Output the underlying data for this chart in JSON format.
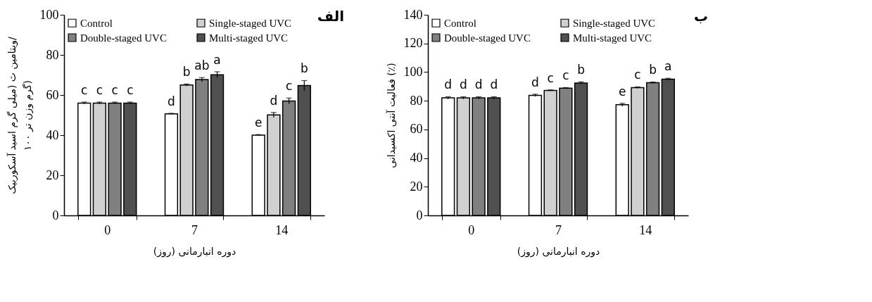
{
  "chart_data": [
    {
      "type": "bar",
      "title": "الف",
      "xlabel": "دوره انبارمانی (روز)",
      "ylabel": "ویتامین ث (میلی گرم اسید آسکوربیک/\n۱۰۰ گرم وزن تر)",
      "categories": [
        "0",
        "7",
        "14"
      ],
      "ylim": [
        0,
        100
      ],
      "yticks": [
        0,
        20,
        40,
        60,
        80,
        100
      ],
      "legend": "top",
      "series": [
        {
          "name": "Control",
          "color": "#ffffff",
          "values": [
            56,
            50.6,
            40
          ],
          "errors": [
            0.5,
            0.3,
            0.3
          ],
          "value_labels": [
            "c",
            "d",
            "e"
          ]
        },
        {
          "name": "Single-staged UVC",
          "color": "#d0d0d0",
          "values": [
            56,
            65,
            50.1
          ],
          "errors": [
            0.5,
            0.5,
            1.2
          ],
          "value_labels": [
            "c",
            "b",
            "d"
          ]
        },
        {
          "name": "Double-staged UVC",
          "color": "#808080",
          "values": [
            56,
            67.7,
            57
          ],
          "errors": [
            0.5,
            1,
            1.5
          ],
          "value_labels": [
            "c",
            "ab",
            "c"
          ]
        },
        {
          "name": "Multi-staged UVC",
          "color": "#505050",
          "values": [
            56,
            70.1,
            64.7
          ],
          "errors": [
            0.5,
            1.5,
            2.5
          ],
          "value_labels": [
            "c",
            "a",
            "b"
          ]
        }
      ]
    },
    {
      "type": "bar",
      "title": "ب",
      "xlabel": "دوره انبارمانی (روز)",
      "ylabel": "فعالیت آنتی اکسیدانی (٪)",
      "categories": [
        "0",
        "7",
        "14"
      ],
      "ylim": [
        0,
        140
      ],
      "yticks": [
        0,
        20,
        40,
        60,
        80,
        100,
        120,
        140
      ],
      "legend": "top",
      "series": [
        {
          "name": "Control",
          "color": "#ffffff",
          "values": [
            82,
            83.8,
            77.2
          ],
          "errors": [
            0.8,
            0.8,
            1
          ],
          "value_labels": [
            "d",
            "d",
            "e"
          ]
        },
        {
          "name": "Single-staged UVC",
          "color": "#d0d0d0",
          "values": [
            82,
            87.2,
            89.2
          ],
          "errors": [
            0.8,
            0.4,
            0.5
          ],
          "value_labels": [
            "d",
            "c",
            "c"
          ]
        },
        {
          "name": "Double-staged UVC",
          "color": "#808080",
          "values": [
            82,
            88.8,
            92.6
          ],
          "errors": [
            0.8,
            0.4,
            0.5
          ],
          "value_labels": [
            "d",
            "c",
            "b"
          ]
        },
        {
          "name": "Multi-staged UVC",
          "color": "#505050",
          "values": [
            82,
            92.4,
            95
          ],
          "errors": [
            0.8,
            0.8,
            0.7
          ],
          "value_labels": [
            "d",
            "b",
            "a"
          ]
        }
      ]
    }
  ]
}
